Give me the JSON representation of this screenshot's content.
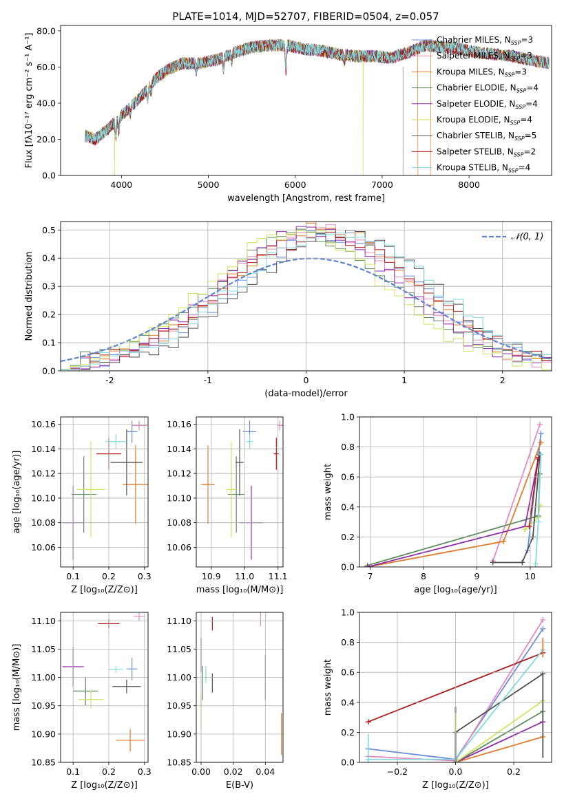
{
  "title": "PLATE=1014, MJD=52707, FIBERID=0504, z=0.057",
  "models": [
    {
      "name": "Chabrier MILES, N",
      "sub": "SSP",
      "tail": "=3",
      "color": "#6a8fd8"
    },
    {
      "name": "Salpeter MILES, N",
      "sub": "SSP",
      "tail": "=3",
      "color": "#e58ac0"
    },
    {
      "name": "Kroupa MILES, N",
      "sub": "SSP",
      "tail": "=3",
      "color": "#e07b2c"
    },
    {
      "name": "Chabrier ELODIE, N",
      "sub": "SSP",
      "tail": "=4",
      "color": "#5c8c5c"
    },
    {
      "name": "Salpeter ELODIE, N",
      "sub": "SSP",
      "tail": "=4",
      "color": "#8e2aa8"
    },
    {
      "name": "Kroupa ELODIE, N",
      "sub": "SSP",
      "tail": "=4",
      "color": "#cde65a"
    },
    {
      "name": "Chabrier STELIB, N",
      "sub": "SSP",
      "tail": "=5",
      "color": "#4f4f4f"
    },
    {
      "name": "Salpeter STELIB, N",
      "sub": "SSP",
      "tail": "=2",
      "color": "#b01b1b"
    },
    {
      "name": "Kroupa STELIB, N",
      "sub": "SSP",
      "tail": "=4",
      "color": "#82d8de"
    }
  ],
  "chart_data": [
    {
      "id": "spectrum",
      "type": "line",
      "xlabel": "wavelength [Angstrom, rest frame]",
      "ylabel": "Flux [fλ10⁻¹⁷ erg cm⁻² s⁻¹ A⁻¹]",
      "xlim": [
        3300,
        8950
      ],
      "ylim": [
        0,
        83
      ],
      "xticks": [
        4000,
        5000,
        6000,
        7000,
        8000
      ],
      "yticks": [
        0,
        20,
        40,
        60,
        80
      ],
      "x_range": [
        3580,
        8920
      ],
      "shape": [
        [
          3580,
          22
        ],
        [
          3700,
          20
        ],
        [
          3850,
          26
        ],
        [
          4000,
          33
        ],
        [
          4150,
          40
        ],
        [
          4250,
          45
        ],
        [
          4400,
          54
        ],
        [
          4550,
          59
        ],
        [
          4700,
          62
        ],
        [
          4900,
          62
        ],
        [
          5100,
          64
        ],
        [
          5300,
          68
        ],
        [
          5500,
          71
        ],
        [
          5700,
          72
        ],
        [
          5900,
          72
        ],
        [
          6100,
          70
        ],
        [
          6300,
          69
        ],
        [
          6500,
          67
        ],
        [
          6700,
          66
        ],
        [
          6900,
          66
        ],
        [
          7100,
          65
        ],
        [
          7300,
          68
        ],
        [
          7500,
          72
        ],
        [
          7700,
          71
        ],
        [
          7900,
          70
        ],
        [
          8100,
          68
        ],
        [
          8300,
          67
        ],
        [
          8500,
          66
        ],
        [
          8700,
          64
        ],
        [
          8920,
          62
        ]
      ],
      "features": [
        {
          "x": 3934,
          "depth": 8
        },
        {
          "x": 3969,
          "depth": 7
        },
        {
          "x": 4102,
          "depth": 4
        },
        {
          "x": 4304,
          "depth": 6
        },
        {
          "x": 4340,
          "depth": 4
        },
        {
          "x": 4861,
          "depth": 4
        },
        {
          "x": 5175,
          "depth": 6
        },
        {
          "x": 5270,
          "depth": 4
        },
        {
          "x": 5893,
          "depth": 14
        },
        {
          "x": 6563,
          "depth": 4
        }
      ],
      "noise": 3.5,
      "gaps": [
        {
          "x": 3920,
          "model": 5
        },
        {
          "x": 6780,
          "model": 5
        },
        {
          "x": 7410,
          "model": 2
        }
      ],
      "vlines": [
        {
          "x": 7240,
          "color": "#888888"
        }
      ]
    },
    {
      "id": "residuals",
      "type": "histogram",
      "xlabel": "(data-model)/error",
      "ylabel": "Normed distribution",
      "xlim": [
        -2.5,
        2.5
      ],
      "ylim": [
        0,
        0.53
      ],
      "xticks": [
        -2,
        -1,
        0,
        1,
        2
      ],
      "yticks": [
        0.0,
        0.1,
        0.2,
        0.3,
        0.4,
        0.5
      ],
      "legend_label": "𝒩(0, 1)",
      "legend_color": "#5b84d4",
      "bin_width": 0.1,
      "gauss_width": 1.15,
      "gauss_shift": 0.05
    },
    {
      "id": "age-vs-Z",
      "type": "scatter",
      "xlabel": "Z [log₁₀(Z/Z⊙)]",
      "ylabel": "age  [log₁₀(age/yr)]",
      "xlim": [
        0.065,
        0.31
      ],
      "ylim": [
        10.044,
        10.166
      ],
      "xticks": [
        0.1,
        0.2,
        0.3
      ],
      "xtick_labels": [
        "0.1",
        "0.2",
        "0.3"
      ],
      "yticks": [
        10.06,
        10.08,
        10.1,
        10.12,
        10.14,
        10.16
      ],
      "ytick_labels": [
        "10.06",
        "10.08",
        "10.10",
        "10.12",
        "10.14",
        "10.16"
      ],
      "points": [
        {
          "m": 0,
          "x": 0.265,
          "y": 10.154,
          "ex": 0.015,
          "ey": 0.009
        },
        {
          "m": 1,
          "x": 0.285,
          "y": 10.159,
          "ex": 0.022,
          "ey": 0.004
        },
        {
          "m": 2,
          "x": 0.275,
          "y": 10.111,
          "ex": 0.035,
          "ey": 0.032
        },
        {
          "m": 3,
          "x": 0.13,
          "y": 10.103,
          "ex": 0.035,
          "ey": 0.031
        },
        {
          "m": 4,
          "x": 0.1,
          "y": 10.08,
          "ex": 0.03,
          "ey": 0.03
        },
        {
          "m": 5,
          "x": 0.15,
          "y": 10.107,
          "ex": 0.04,
          "ey": 0.039
        },
        {
          "m": 6,
          "x": 0.25,
          "y": 10.129,
          "ex": 0.045,
          "ey": 0.027
        },
        {
          "m": 7,
          "x": 0.2,
          "y": 10.136,
          "ex": 0.035,
          "ey": 0.013
        },
        {
          "m": 8,
          "x": 0.22,
          "y": 10.146,
          "ex": 0.03,
          "ey": 0.006
        }
      ]
    },
    {
      "id": "age-vs-mass",
      "type": "scatter",
      "xlabel": "mass [log₁₀(M/M⊙)]",
      "ylabel": "",
      "xlim": [
        10.855,
        11.115
      ],
      "ylim": [
        10.044,
        10.166
      ],
      "xticks": [
        10.9,
        11.0,
        11.1
      ],
      "xtick_labels": [
        "10.9",
        "11.0",
        "11.1"
      ],
      "yticks": [
        10.06,
        10.08,
        10.1,
        10.12,
        10.14,
        10.16
      ],
      "ytick_labels": [
        "10.06",
        "10.08",
        "10.10",
        "10.12",
        "10.14",
        "10.16"
      ],
      "points": [
        {
          "m": 0,
          "x": 11.015,
          "y": 10.154,
          "ex": 0.02,
          "ey": 0.009
        },
        {
          "m": 1,
          "x": 11.105,
          "y": 10.159,
          "ex": 0.008,
          "ey": 0.004
        },
        {
          "m": 2,
          "x": 10.89,
          "y": 10.111,
          "ex": 0.02,
          "ey": 0.032
        },
        {
          "m": 3,
          "x": 10.975,
          "y": 10.103,
          "ex": 0.025,
          "ey": 0.031
        },
        {
          "m": 4,
          "x": 11.02,
          "y": 10.08,
          "ex": 0.035,
          "ey": 0.03
        },
        {
          "m": 5,
          "x": 10.96,
          "y": 10.107,
          "ex": 0.015,
          "ey": 0.039
        },
        {
          "m": 6,
          "x": 10.985,
          "y": 10.129,
          "ex": 0.012,
          "ey": 0.027
        },
        {
          "m": 7,
          "x": 11.095,
          "y": 10.136,
          "ex": 0.008,
          "ey": 0.013
        },
        {
          "m": 8,
          "x": 11.015,
          "y": 10.146,
          "ex": 0.01,
          "ey": 0.006
        }
      ]
    },
    {
      "id": "weight-vs-age",
      "type": "line",
      "xlabel": "age  [log₁₀(age/yr)]",
      "ylabel": "mass weight",
      "xlim": [
        6.8,
        10.4
      ],
      "ylim": [
        0,
        1.0
      ],
      "xticks": [
        7,
        8,
        9,
        10
      ],
      "xtick_labels": [
        "7",
        "8",
        "9",
        "10"
      ],
      "yticks": [
        0.0,
        0.2,
        0.4,
        0.6,
        0.8,
        1.0
      ],
      "ytick_labels": [
        "0.0",
        "0.2",
        "0.4",
        "0.6",
        "0.8",
        "1.0"
      ],
      "series": [
        {
          "m": 0,
          "x": [
            9.95,
            10.2
          ],
          "y": [
            0.11,
            0.89
          ]
        },
        {
          "m": 1,
          "x": [
            9.3,
            10.18
          ],
          "y": [
            0.04,
            0.95
          ]
        },
        {
          "m": 2,
          "x": [
            6.95,
            9.5,
            10.2
          ],
          "y": [
            0.0,
            0.17,
            0.83
          ]
        },
        {
          "m": 3,
          "x": [
            6.95,
            10.15,
            10.18
          ],
          "y": [
            0.01,
            0.34,
            0.62
          ]
        },
        {
          "m": 4,
          "x": [
            6.95,
            9.9,
            10.15
          ],
          "y": [
            0.0,
            0.27,
            0.72
          ]
        },
        {
          "m": 5,
          "x": [
            9.9,
            10.15,
            10.18
          ],
          "y": [
            0.25,
            0.33,
            0.41
          ]
        },
        {
          "m": 6,
          "x": [
            9.3,
            9.85,
            10.05,
            10.18
          ],
          "y": [
            0.03,
            0.03,
            0.2,
            0.75
          ]
        },
        {
          "m": 7,
          "x": [
            9.98,
            10.15
          ],
          "y": [
            0.27,
            0.73
          ]
        },
        {
          "m": 8,
          "x": [
            10.1,
            10.15,
            10.2
          ],
          "y": [
            0.02,
            0.3,
            0.75
          ]
        }
      ]
    },
    {
      "id": "mass-vs-Z",
      "type": "scatter",
      "xlabel": "Z [log₁₀(Z/Z⊙)]",
      "ylabel": "mass [log₁₀(M/M⊙)]",
      "xlim": [
        0.065,
        0.31
      ],
      "ylim": [
        10.85,
        11.115
      ],
      "xticks": [
        0.1,
        0.2,
        0.3
      ],
      "xtick_labels": [
        "0.1",
        "0.2",
        "0.3"
      ],
      "yticks": [
        10.85,
        10.9,
        10.95,
        11.0,
        11.05,
        11.1
      ],
      "ytick_labels": [
        "10.85",
        "10.90",
        "10.95",
        "11.00",
        "11.05",
        "11.10"
      ],
      "points": [
        {
          "m": 0,
          "x": 0.265,
          "y": 11.015,
          "ex": 0.015,
          "ey": 0.02
        },
        {
          "m": 1,
          "x": 0.285,
          "y": 11.108,
          "ex": 0.015,
          "ey": 0.008
        },
        {
          "m": 2,
          "x": 0.26,
          "y": 10.889,
          "ex": 0.04,
          "ey": 0.02
        },
        {
          "m": 3,
          "x": 0.135,
          "y": 10.976,
          "ex": 0.035,
          "ey": 0.025
        },
        {
          "m": 4,
          "x": 0.1,
          "y": 11.019,
          "ex": 0.03,
          "ey": 0.035
        },
        {
          "m": 5,
          "x": 0.15,
          "y": 10.961,
          "ex": 0.035,
          "ey": 0.016
        },
        {
          "m": 6,
          "x": 0.25,
          "y": 10.984,
          "ex": 0.04,
          "ey": 0.012
        },
        {
          "m": 7,
          "x": 0.2,
          "y": 11.095,
          "ex": 0.03,
          "ey": 0.008
        },
        {
          "m": 8,
          "x": 0.22,
          "y": 11.014,
          "ex": 0.02,
          "ey": 0.006
        }
      ]
    },
    {
      "id": "mass-vs-EBV",
      "type": "scatter",
      "xlabel": "E(B-V)",
      "ylabel": "",
      "xlim": [
        -0.003,
        0.051
      ],
      "ylim": [
        10.85,
        11.115
      ],
      "xticks": [
        0.0,
        0.02,
        0.04
      ],
      "xtick_labels": [
        "0.00",
        "0.02",
        "0.04"
      ],
      "yticks": [
        10.85,
        10.9,
        10.95,
        11.0,
        11.05,
        11.1
      ],
      "ytick_labels": [
        "10.85",
        "10.90",
        "10.95",
        "11.00",
        "11.05",
        "11.10"
      ],
      "points": [
        {
          "m": 0,
          "x": 0.04,
          "y": 11.0,
          "ex": 0.0,
          "ey": 0.04
        },
        {
          "m": 1,
          "x": 0.037,
          "y": 11.107,
          "ex": 0.0,
          "ey": 0.017
        },
        {
          "m": 2,
          "x": 0.05,
          "y": 10.9,
          "ex": 0.0,
          "ey": 0.037
        },
        {
          "m": 3,
          "x": 0.001,
          "y": 10.99,
          "ex": 0.0,
          "ey": 0.03
        },
        {
          "m": 4,
          "x": 0.0,
          "y": 11.04,
          "ex": 0.0,
          "ey": 0.03
        },
        {
          "m": 5,
          "x": 0.0,
          "y": 10.94,
          "ex": 0.0,
          "ey": 0.03
        },
        {
          "m": 6,
          "x": 0.007,
          "y": 10.99,
          "ex": 0.0,
          "ey": 0.017
        },
        {
          "m": 7,
          "x": 0.007,
          "y": 11.095,
          "ex": 0.0,
          "ey": 0.012
        },
        {
          "m": 8,
          "x": 0.003,
          "y": 11.005,
          "ex": 0.0,
          "ey": 0.015
        }
      ]
    },
    {
      "id": "weight-vs-Z",
      "type": "line",
      "xlabel": "Z [log₁₀(Z/Z⊙)]",
      "ylabel": "mass weight",
      "xlim": [
        -0.33,
        0.33
      ],
      "ylim": [
        0,
        1.0
      ],
      "xticks": [
        -0.2,
        0.0,
        0.2
      ],
      "xtick_labels": [
        "−0.2",
        "0.0",
        "0.2"
      ],
      "yticks": [
        0.0,
        0.2,
        0.4,
        0.6,
        0.8,
        1.0
      ],
      "ytick_labels": [
        "0.0",
        "0.2",
        "0.4",
        "0.6",
        "0.8",
        "1.0"
      ],
      "series": [
        {
          "m": 0,
          "x": [
            -0.3,
            0.0,
            0.3
          ],
          "y": [
            0.09,
            0.02,
            0.89
          ]
        },
        {
          "m": 1,
          "x": [
            -0.3,
            0.0,
            0.3
          ],
          "y": [
            0.04,
            0.01,
            0.95
          ]
        },
        {
          "m": 2,
          "x": [
            0.0,
            0.3
          ],
          "y": [
            0.0,
            0.17
          ]
        },
        {
          "m": 3,
          "x": [
            0.0,
            0.3
          ],
          "y": [
            0.0,
            0.34
          ]
        },
        {
          "m": 4,
          "x": [
            0.0,
            0.3
          ],
          "y": [
            0.0,
            0.27
          ]
        },
        {
          "m": 5,
          "x": [
            0.0,
            0.3
          ],
          "y": [
            0.0,
            0.41
          ]
        },
        {
          "m": 6,
          "x": [
            0.0,
            0.0,
            0.3
          ],
          "y": [
            0.0,
            0.2,
            0.59
          ]
        },
        {
          "m": 7,
          "x": [
            -0.3,
            0.3
          ],
          "y": [
            0.27,
            0.73
          ]
        },
        {
          "m": 8,
          "x": [
            -0.3,
            0.0,
            0.3
          ],
          "y": [
            0.02,
            0.02,
            0.75
          ]
        }
      ],
      "stems": [
        {
          "m": 6,
          "x": 0.0,
          "y0": 0.0,
          "y1": 0.37
        },
        {
          "m": 4,
          "x": 0.0,
          "y0": 0.3,
          "y1": 0.37
        },
        {
          "m": 5,
          "x": 0.0,
          "y0": 0.2,
          "y1": 0.33
        },
        {
          "m": 6,
          "x": 0.3,
          "y0": 0.03,
          "y1": 0.6
        },
        {
          "m": 2,
          "x": 0.3,
          "y0": 0.7,
          "y1": 0.83
        },
        {
          "m": 8,
          "x": -0.3,
          "y0": 0.0,
          "y1": 0.19
        }
      ]
    }
  ]
}
